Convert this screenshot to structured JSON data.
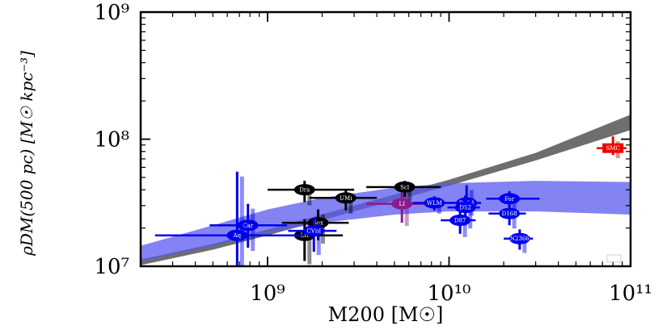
{
  "chart_data": {
    "type": "scatter",
    "xlabel": "M200 [M☉]",
    "ylabel": "ρDM(500 pc) [M☉ kpc⁻³]",
    "xscale": "log",
    "yscale": "log",
    "xlim": [
      200000000,
      100000000000
    ],
    "ylim": [
      10000000,
      1000000000
    ],
    "x_tick_labels": [
      "10⁹",
      "10¹⁰",
      "10¹¹"
    ],
    "y_tick_labels": [
      "10⁷",
      "10⁸",
      "10⁹"
    ],
    "grid": false,
    "colors": {
      "black": "#000000",
      "purple": "#8B1A8B",
      "blue": "#0000EE",
      "red": "#EE0000",
      "band_gray": "#555555",
      "band_blue": "#5A5AF0"
    },
    "bands": [
      {
        "color": "band_gray",
        "x": [
          200000000,
          500000000,
          1000000000,
          3000000000,
          10000000000,
          30000000000,
          100000000000
        ],
        "y_low": [
          10200000,
          13500000,
          17500000,
          27000000,
          43000000,
          68000000,
          118000000
        ],
        "y_high": [
          11300000,
          15000000,
          19500000,
          30000000,
          48000000,
          78000000,
          156000000
        ]
      },
      {
        "color": "band_blue",
        "x": [
          200000000,
          500000000,
          1000000000,
          2000000000,
          5000000000,
          10000000000,
          30000000000,
          100000000000
        ],
        "y_low": [
          11000000,
          14500000,
          18500000,
          22000000,
          25500000,
          27000000,
          27000000,
          25500000
        ],
        "y_high": [
          14500000,
          21000000,
          28000000,
          34500000,
          41500000,
          45000000,
          47000000,
          46000000
        ]
      }
    ],
    "points": [
      {
        "label": "Dra",
        "color": "black",
        "x": 1600000000,
        "y": 40000000,
        "xerr": [
          600000000,
          1400000000
        ],
        "yerr": [
          8000000,
          7000000
        ]
      },
      {
        "label": "UMi",
        "color": "black",
        "x": 2700000000,
        "y": 34500000,
        "xerr": [
          1000000000,
          1300000000
        ],
        "yerr": [
          7000000,
          5000000
        ]
      },
      {
        "label": "Scl",
        "color": "black",
        "x": 5700000000,
        "y": 42000000,
        "xerr": [
          2200000000,
          3300000000
        ],
        "yerr": [
          7000000,
          5000000
        ]
      },
      {
        "label": "Sex",
        "color": "black",
        "x": 1900000000,
        "y": 22000000,
        "xerr": [
          700000000,
          900000000
        ],
        "yerr": [
          6000000,
          6000000
        ]
      },
      {
        "label": "LII",
        "color": "black",
        "x": 1600000000,
        "y": 17500000,
        "xerr": [
          600000000,
          1000000000
        ],
        "yerr": [
          6500000,
          6000000
        ]
      },
      {
        "label": "LI",
        "color": "purple",
        "x": 5500000000,
        "y": 31000000,
        "xerr": [
          2000000000,
          2500000000
        ],
        "yerr": [
          9000000,
          7000000
        ]
      },
      {
        "label": "Car",
        "color": "blue",
        "x": 780000000,
        "y": 21000000,
        "xerr": [
          300000000,
          500000000
        ],
        "yerr": [
          7000000,
          10000000
        ]
      },
      {
        "label": "Aq",
        "color": "blue",
        "x": 680000000,
        "y": 17500000,
        "xerr": [
          440000000,
          900000000
        ],
        "yerr": [
          7500000,
          38000000
        ]
      },
      {
        "label": "CVnI",
        "color": "blue",
        "x": 1800000000,
        "y": 19000000,
        "xerr": [
          500000000,
          600000000
        ],
        "yerr": [
          6000000,
          5000000
        ]
      },
      {
        "label": "WLM",
        "color": "blue",
        "x": 8300000000,
        "y": 31500000,
        "xerr": [
          2000000000,
          2000000000
        ],
        "yerr": [
          4000000,
          4000000
        ]
      },
      {
        "label": "D154",
        "color": "blue",
        "x": 12500000000,
        "y": 31500000,
        "xerr": [
          2500000000,
          2500000000
        ],
        "yerr": [
          5000000,
          12000000
        ]
      },
      {
        "label": "D52",
        "color": "blue",
        "x": 12300000000,
        "y": 29000000,
        "xerr": [
          2500000000,
          2500000000
        ],
        "yerr": [
          8000000,
          7000000
        ]
      },
      {
        "label": "D87",
        "color": "blue",
        "x": 11500000000,
        "y": 23000000,
        "xerr": [
          2500000000,
          2500000000
        ],
        "yerr": [
          5000000,
          5000000
        ]
      },
      {
        "label": "For",
        "color": "blue",
        "x": 21500000000,
        "y": 34000000,
        "xerr": [
          5500000000,
          10000000000
        ],
        "yerr": [
          5000000,
          5000000
        ]
      },
      {
        "label": "D168",
        "color": "blue",
        "x": 21500000000,
        "y": 26000000,
        "xerr": [
          5000000000,
          5000000000
        ],
        "yerr": [
          5000000,
          5000000
        ]
      },
      {
        "label": "N2366",
        "color": "blue",
        "x": 24500000000,
        "y": 16500000,
        "xerr": [
          4500000000,
          4500000000
        ],
        "yerr": [
          3000000,
          3000000
        ]
      },
      {
        "label": "SMC",
        "color": "red",
        "x": 80000000000,
        "y": 85000000,
        "xerr": [
          15000000000,
          15000000000
        ],
        "yerr": [
          10000000,
          20000000
        ]
      }
    ]
  }
}
